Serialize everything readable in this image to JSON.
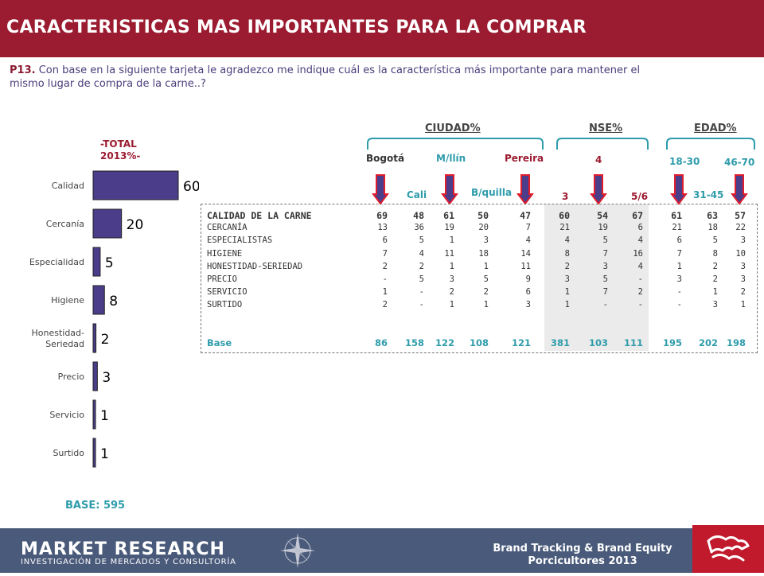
{
  "header": {
    "title": "CARACTERISTICAS MAS IMPORTANTES PARA LA COMPRAR"
  },
  "question": {
    "code": "P13.",
    "text": " Con base en la siguiente tarjeta le agradezco me indique cuál es la característica más importante para mantener el mismo lugar de compra de la carne..?"
  },
  "total_label": "-TOTAL 2013%-",
  "base_label": "BASE:  595",
  "chart_data": {
    "type": "bar",
    "orientation": "horizontal",
    "categories": [
      "Calidad",
      "Cercanía",
      "Especialidad",
      "Higiene",
      "Honestidad-\nSeriedad",
      "Precio",
      "Servicio",
      "Surtido"
    ],
    "values": [
      60,
      20,
      5,
      8,
      2,
      3,
      1,
      1
    ],
    "color": "#4b3d8a",
    "xlim": [
      0,
      60
    ]
  },
  "table": {
    "groups": [
      "CIUDAD%",
      "NSE%",
      "EDAD%"
    ],
    "columns": [
      "Bogotá",
      "Cali",
      "M/llín",
      "B/quilla",
      "Pereira",
      "3",
      "4",
      "5/6",
      "18-30",
      "31-45",
      "46-70"
    ],
    "rows": [
      {
        "label": "CALIDAD DE LA CARNE",
        "values": [
          "69",
          "48",
          "61",
          "50",
          "47",
          "60",
          "54",
          "67",
          "61",
          "63",
          "57"
        ]
      },
      {
        "label": "CERCANÍA",
        "values": [
          "13",
          "36",
          "19",
          "20",
          "7",
          "21",
          "19",
          "6",
          "21",
          "18",
          "22"
        ]
      },
      {
        "label": "ESPECIALISTAS",
        "values": [
          "6",
          "5",
          "1",
          "3",
          "4",
          "4",
          "5",
          "4",
          "6",
          "5",
          "3"
        ]
      },
      {
        "label": "HIGIENE",
        "values": [
          "7",
          "4",
          "11",
          "18",
          "14",
          "8",
          "7",
          "16",
          "7",
          "8",
          "10"
        ]
      },
      {
        "label": "HONESTIDAD-SERIEDAD",
        "values": [
          "2",
          "2",
          "1",
          "1",
          "11",
          "2",
          "3",
          "4",
          "1",
          "2",
          "3"
        ]
      },
      {
        "label": "PRECIO",
        "values": [
          "-",
          "5",
          "3",
          "5",
          "9",
          "3",
          "5",
          "-",
          "3",
          "2",
          "3"
        ]
      },
      {
        "label": "SERVICIO",
        "values": [
          "1",
          "-",
          "2",
          "2",
          "6",
          "1",
          "7",
          "2",
          "-",
          "1",
          "2"
        ]
      },
      {
        "label": "SURTIDO",
        "values": [
          "2",
          "-",
          "1",
          "1",
          "3",
          "1",
          "-",
          "-",
          "-",
          "3",
          "1"
        ]
      }
    ],
    "base": {
      "label": "Base",
      "values": [
        "86",
        "158",
        "122",
        "108",
        "121",
        "381",
        "103",
        "111",
        "195",
        "202",
        "198"
      ]
    }
  },
  "footer": {
    "brand": "MARKET RESEARCH",
    "tagline": "INVESTIGACIÓN DE MERCADOS Y CONSULTORÍA",
    "study_line1": "Brand Tracking & Brand Equity",
    "study_line2": "Porcicultores 2013"
  }
}
